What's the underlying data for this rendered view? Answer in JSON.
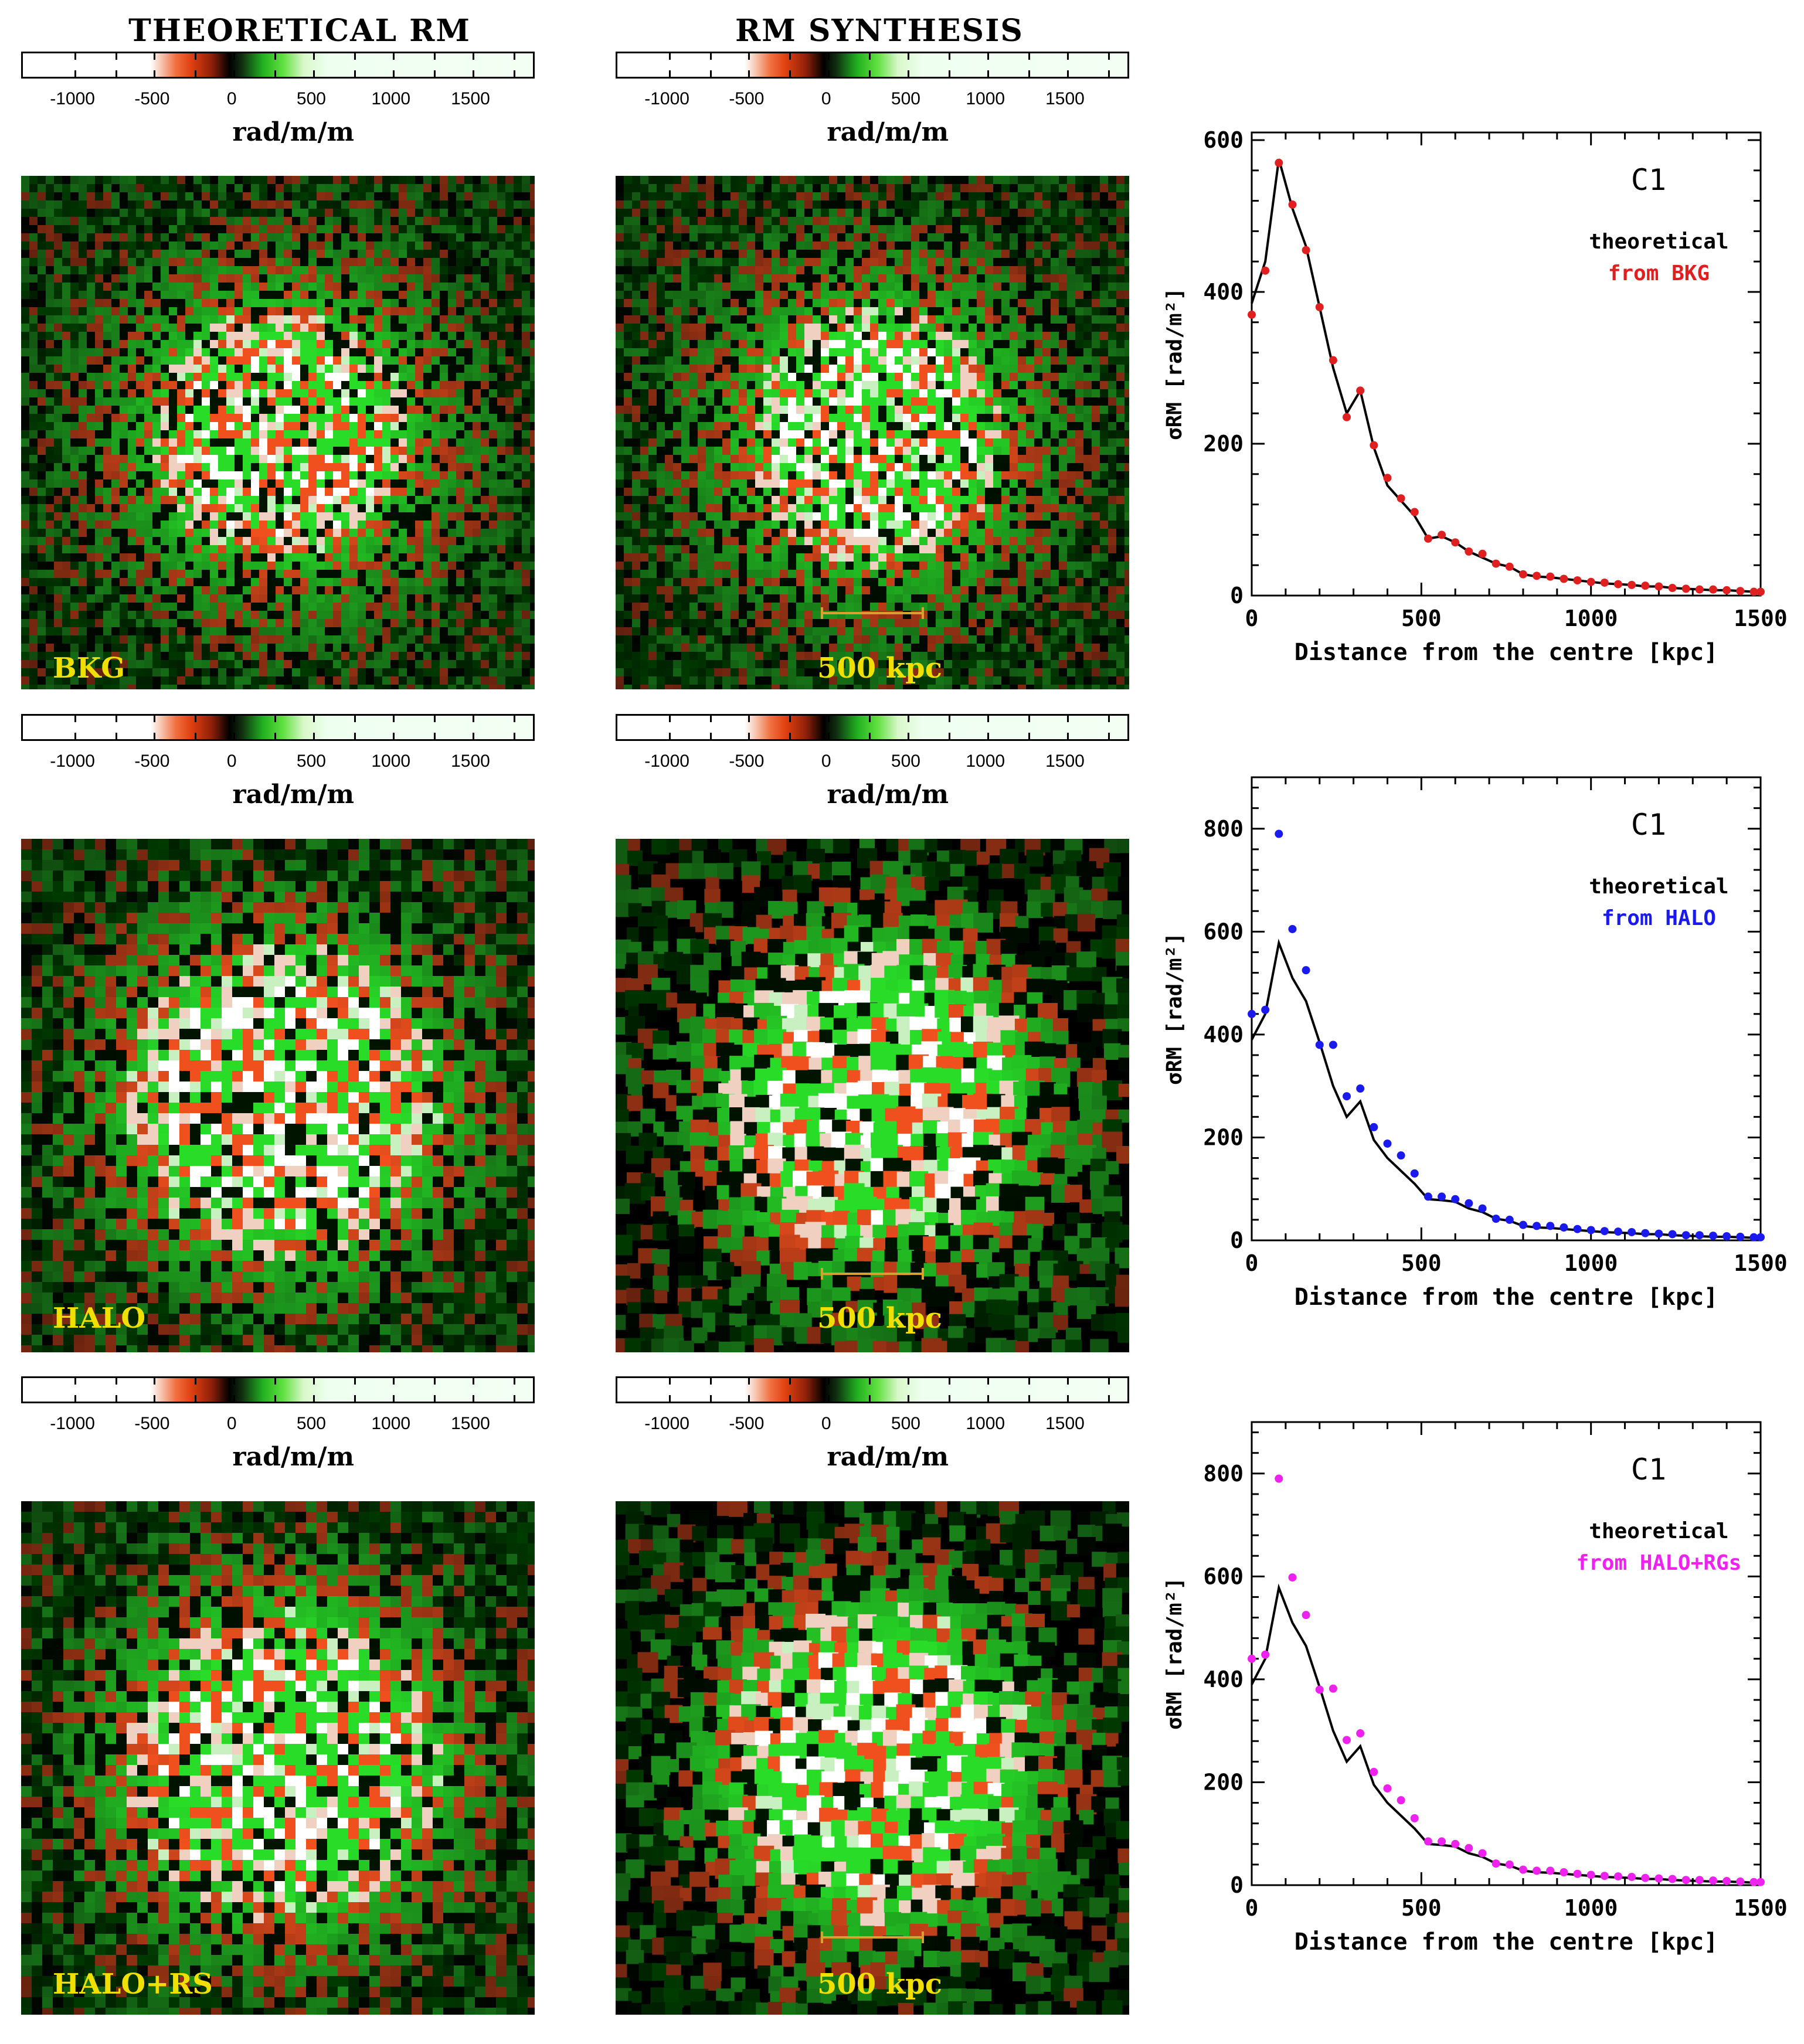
{
  "titles": {
    "left": "THEORETICAL RM",
    "middle": "RM SYNTHESIS"
  },
  "colorbar": {
    "tick_labels": [
      "-1000",
      "-500",
      "0",
      "500",
      "1000",
      "1500"
    ],
    "unit": "rad/m/m"
  },
  "maps": {
    "left_labels": [
      "BKG",
      "HALO",
      "HALO+RS"
    ],
    "scale_label": "500 kpc"
  },
  "colors": {
    "bkg": "#e02020",
    "halo": "#1a1aee",
    "halorgs": "#ee22ee",
    "label_yellow": "#f0e000"
  },
  "chart_data": [
    {
      "type": "line+scatter",
      "title": "C1",
      "xlabel": "Distance from the centre [kpc]",
      "ylabel": "σRM [rad/m²]",
      "xlim": [
        0,
        1500
      ],
      "ylim": [
        0,
        610
      ],
      "xticks": [
        0,
        500,
        1000,
        1500
      ],
      "yticks": [
        0,
        200,
        400,
        600
      ],
      "legend": [
        "theoretical",
        "from BKG"
      ],
      "series": [
        {
          "name": "theoretical",
          "style": "line",
          "x": [
            0,
            40,
            80,
            120,
            160,
            200,
            240,
            280,
            320,
            360,
            400,
            440,
            480,
            520,
            560,
            600,
            640,
            680,
            720,
            760,
            800,
            840,
            880,
            920,
            960,
            1000,
            1040,
            1080,
            1120,
            1160,
            1200,
            1240,
            1280,
            1320,
            1360,
            1400,
            1440,
            1480,
            1500
          ],
          "y": [
            385,
            440,
            575,
            510,
            460,
            380,
            300,
            240,
            270,
            195,
            145,
            125,
            105,
            75,
            78,
            70,
            58,
            50,
            42,
            38,
            28,
            25,
            24,
            22,
            20,
            18,
            16,
            15,
            14,
            12,
            12,
            10,
            9,
            8,
            7,
            7,
            6,
            5,
            5
          ]
        },
        {
          "name": "from BKG",
          "style": "points",
          "x": [
            0,
            40,
            80,
            120,
            160,
            200,
            240,
            280,
            320,
            360,
            400,
            440,
            480,
            520,
            560,
            600,
            640,
            680,
            720,
            760,
            800,
            840,
            880,
            920,
            960,
            1000,
            1040,
            1080,
            1120,
            1160,
            1200,
            1240,
            1280,
            1320,
            1360,
            1400,
            1440,
            1480,
            1500
          ],
          "y": [
            370,
            428,
            570,
            515,
            455,
            380,
            310,
            235,
            270,
            198,
            155,
            128,
            110,
            75,
            80,
            70,
            58,
            55,
            42,
            38,
            28,
            26,
            25,
            22,
            20,
            18,
            17,
            15,
            14,
            13,
            12,
            10,
            9,
            8,
            8,
            7,
            6,
            5,
            5
          ]
        }
      ]
    },
    {
      "type": "line+scatter",
      "title": "C1",
      "xlabel": "Distance from the centre [kpc]",
      "ylabel": "σRM [rad/m²]",
      "xlim": [
        0,
        1500
      ],
      "ylim": [
        0,
        900
      ],
      "xticks": [
        0,
        500,
        1000,
        1500
      ],
      "yticks": [
        0,
        200,
        400,
        600,
        800
      ],
      "legend": [
        "theoretical",
        "from HALO"
      ],
      "series": [
        {
          "name": "theoretical",
          "style": "line",
          "x": [
            0,
            40,
            80,
            120,
            160,
            200,
            240,
            280,
            320,
            360,
            400,
            440,
            480,
            520,
            560,
            600,
            640,
            680,
            720,
            760,
            800,
            840,
            880,
            920,
            960,
            1000,
            1040,
            1080,
            1120,
            1160,
            1200,
            1240,
            1280,
            1320,
            1360,
            1400,
            1440,
            1480,
            1500
          ],
          "y": [
            390,
            440,
            578,
            510,
            465,
            385,
            300,
            240,
            270,
            195,
            160,
            135,
            110,
            80,
            78,
            75,
            62,
            55,
            42,
            38,
            28,
            25,
            24,
            22,
            20,
            18,
            16,
            15,
            14,
            12,
            12,
            10,
            9,
            8,
            7,
            7,
            6,
            5,
            5
          ]
        },
        {
          "name": "from HALO",
          "style": "points",
          "x": [
            0,
            40,
            80,
            120,
            160,
            200,
            240,
            280,
            320,
            360,
            400,
            440,
            480,
            520,
            560,
            600,
            640,
            680,
            720,
            760,
            800,
            840,
            880,
            920,
            960,
            1000,
            1040,
            1080,
            1120,
            1160,
            1200,
            1240,
            1280,
            1320,
            1360,
            1400,
            1440,
            1480,
            1500
          ],
          "y": [
            440,
            448,
            790,
            605,
            525,
            380,
            380,
            280,
            295,
            220,
            188,
            165,
            130,
            85,
            85,
            80,
            72,
            62,
            42,
            40,
            30,
            28,
            28,
            25,
            22,
            20,
            18,
            17,
            16,
            14,
            13,
            12,
            10,
            10,
            9,
            8,
            7,
            6,
            6
          ]
        }
      ]
    },
    {
      "type": "line+scatter",
      "title": "C1",
      "xlabel": "Distance from the centre [kpc]",
      "ylabel": "σRM [rad/m²]",
      "xlim": [
        0,
        1500
      ],
      "ylim": [
        0,
        900
      ],
      "xticks": [
        0,
        500,
        1000,
        1500
      ],
      "yticks": [
        0,
        200,
        400,
        600,
        800
      ],
      "legend": [
        "theoretical",
        "from HALO+RGs"
      ],
      "series": [
        {
          "name": "theoretical",
          "style": "line",
          "x": [
            0,
            40,
            80,
            120,
            160,
            200,
            240,
            280,
            320,
            360,
            400,
            440,
            480,
            520,
            560,
            600,
            640,
            680,
            720,
            760,
            800,
            840,
            880,
            920,
            960,
            1000,
            1040,
            1080,
            1120,
            1160,
            1200,
            1240,
            1280,
            1320,
            1360,
            1400,
            1440,
            1480,
            1500
          ],
          "y": [
            390,
            440,
            578,
            510,
            465,
            385,
            300,
            240,
            270,
            195,
            160,
            135,
            110,
            80,
            78,
            75,
            62,
            55,
            42,
            38,
            28,
            25,
            24,
            22,
            20,
            18,
            16,
            15,
            14,
            12,
            12,
            10,
            9,
            8,
            7,
            7,
            6,
            5,
            5
          ]
        },
        {
          "name": "from HALO+RGs",
          "style": "points",
          "x": [
            0,
            40,
            80,
            120,
            160,
            200,
            240,
            280,
            320,
            360,
            400,
            440,
            480,
            520,
            560,
            600,
            640,
            680,
            720,
            760,
            800,
            840,
            880,
            920,
            960,
            1000,
            1040,
            1080,
            1120,
            1160,
            1200,
            1240,
            1280,
            1320,
            1360,
            1400,
            1440,
            1480,
            1500
          ],
          "y": [
            440,
            448,
            790,
            598,
            525,
            380,
            382,
            282,
            295,
            220,
            188,
            165,
            130,
            85,
            85,
            80,
            72,
            62,
            42,
            40,
            30,
            28,
            28,
            25,
            22,
            20,
            18,
            17,
            16,
            14,
            13,
            12,
            10,
            10,
            9,
            8,
            7,
            6,
            6
          ]
        }
      ]
    }
  ]
}
